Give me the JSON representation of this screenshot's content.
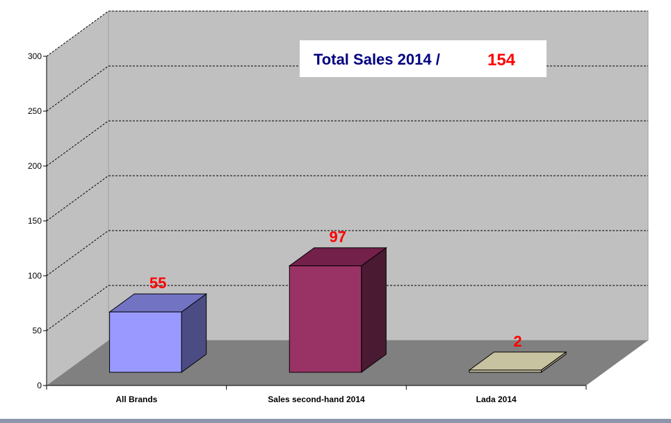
{
  "colors": {
    "back_wall": "#c0c0c0",
    "side_wall": "#c0c0c0",
    "floor": "#808080",
    "grid": "#000000",
    "data_label": "#ff0000",
    "summary_title": "#000080",
    "summary_value": "#ff0000",
    "bottom_bar": "#8e96ab"
  },
  "summary": {
    "title": "Total Sales 2014 /",
    "value": "154"
  },
  "chart_data": {
    "type": "bar",
    "style": "3d-column",
    "categories": [
      "All Brands",
      "Sales second-hand 2014",
      "Lada 2014"
    ],
    "values": [
      55,
      97,
      2
    ],
    "data_labels": [
      "55",
      "97",
      "2"
    ],
    "bar_colors": [
      {
        "front": "#9999ff",
        "top": "#7373c4",
        "side": "#4c4c85"
      },
      {
        "front": "#993366",
        "top": "#73204a",
        "side": "#4a1a33"
      },
      {
        "front": "#c7c3a0",
        "top": "#c7c3a0",
        "side": "#9a9780"
      }
    ],
    "ylim": [
      0,
      300
    ],
    "yticks": [
      0,
      50,
      100,
      150,
      200,
      250,
      300
    ],
    "grid": true,
    "legend": "none",
    "title": "",
    "xlabel": "",
    "ylabel": ""
  }
}
